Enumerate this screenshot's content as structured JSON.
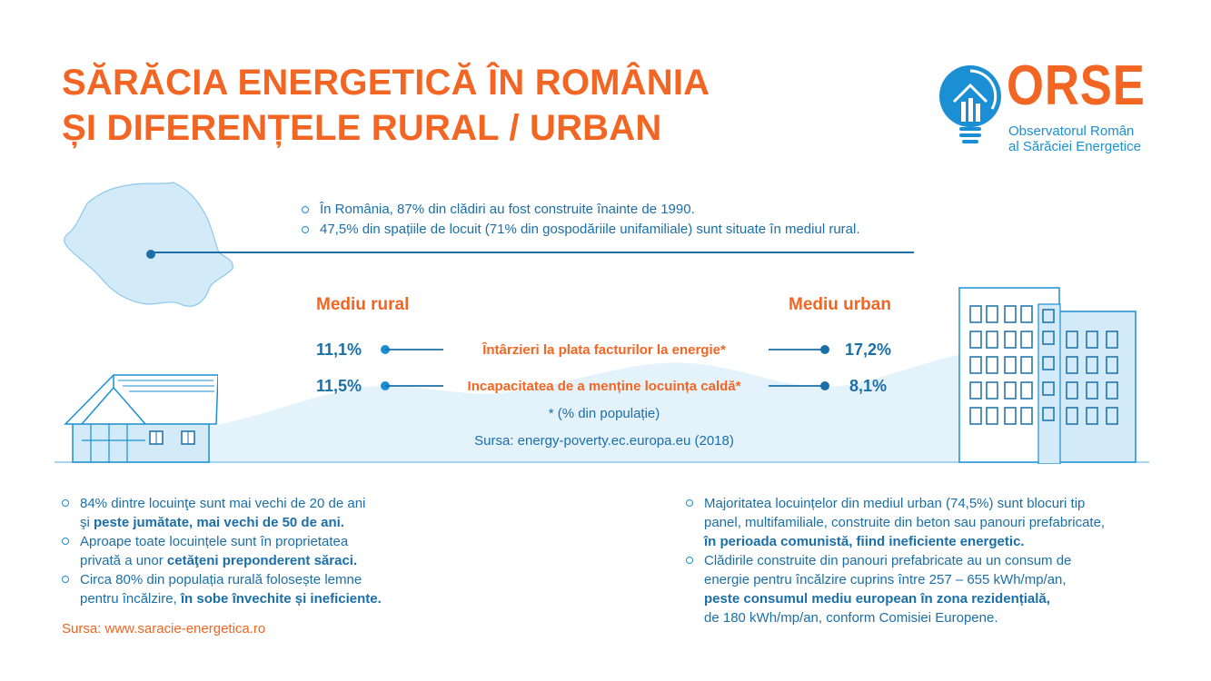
{
  "title": {
    "line1": "SĂRĂCIA ENERGETICĂ ÎN ROMÂNIA",
    "line2": "ȘI DIFERENȚELE RURAL / URBAN"
  },
  "logo": {
    "word": "ORSE",
    "sub1": "Observatorul Român",
    "sub2": "al Sărăciei Energetice",
    "icon": "lightbulb-house-icon"
  },
  "intro": [
    "În România, 87% din clădiri au fost construite înainte de 1990.",
    "47,5% din spațiile de locuit (71% din gospodăriile unifamiliale) sunt situate în mediul rural."
  ],
  "comparison": {
    "rural_label": "Mediu rural",
    "urban_label": "Mediu urban",
    "rows": [
      {
        "indicator": "Întârzieri la plata facturilor la energie*",
        "rural": "11,1%",
        "urban": "17,2%"
      },
      {
        "indicator": "Incapacitatea de a menține locuința caldă*",
        "rural": "11,5%",
        "urban": "8,1%"
      }
    ],
    "footnote": "* (% din populație)",
    "source": "Sursa: energy-poverty.ec.europa.eu (2018)"
  },
  "rural_facts": [
    {
      "text": "84% dintre locuinţe sunt mai vechi de 20 de ani",
      "cont": "şi ",
      "bold": "peste jumătate, mai vechi de 50 de ani."
    },
    {
      "text": "Aproape toate locuințele sunt în proprietatea",
      "cont": "privată a unor ",
      "bold": "cetăţeni preponderent săraci."
    },
    {
      "text": "Circa 80% din populația rurală folosește lemne",
      "cont": "pentru încălzire, ",
      "bold": "în sobe învechite și ineficiente."
    }
  ],
  "rural_source": "Sursa: www.saracie-energetica.ro",
  "urban_facts": {
    "f1_l1": "Majoritatea locuințelor din mediul urban (74,5%) sunt blocuri tip",
    "f1_l2": "panel, multifamiliale, construite din beton sau panouri prefabricate,",
    "f1_bold": "în perioada comunistă, fiind ineficiente energetic.",
    "f2_l1": "Clădirile construite din panouri prefabricate au un consum de",
    "f2_l2": "energie pentru încălzire cuprins între 257 – 655 kWh/mp/an,",
    "f2_bold": "peste consumul mediu european în zona rezidențială,",
    "f2_l4": "de 180 kWh/mp/an, conform Comisiei Europene."
  },
  "colors": {
    "orange": "#f26522",
    "blue": "#1b6fa8",
    "light_blue": "#1b8fd4",
    "pale": "#dff0fa"
  }
}
